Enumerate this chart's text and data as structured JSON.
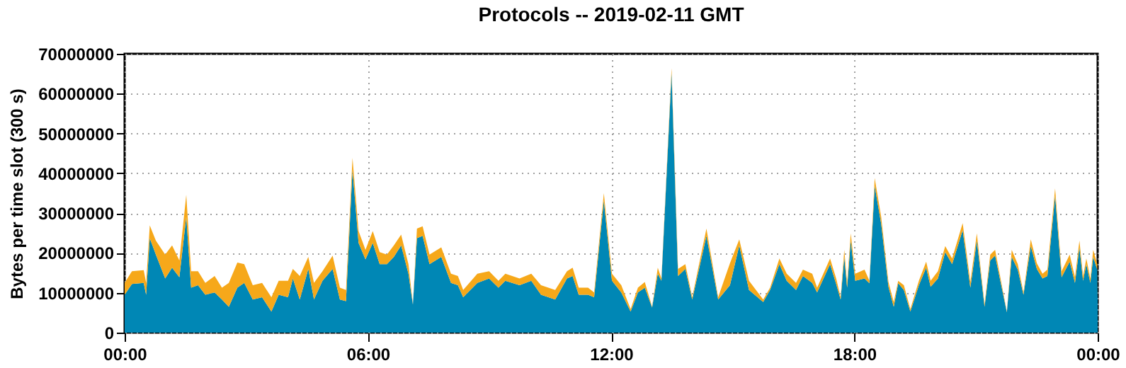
{
  "chart_data": {
    "type": "area",
    "title": "Protocols -- 2019-02-11 GMT",
    "ylabel": "Bytes per time slot (300 s)",
    "stacked": true,
    "grid": true,
    "xlim": [
      0,
      24
    ],
    "xticks": [
      {
        "value": 0,
        "label": "00:00"
      },
      {
        "value": 6,
        "label": "06:00"
      },
      {
        "value": 12,
        "label": "12:00"
      },
      {
        "value": 18,
        "label": "18:00"
      },
      {
        "value": 24,
        "label": "00:00"
      }
    ],
    "ylim": [
      0,
      70000000
    ],
    "yticks": [
      0,
      10000000,
      20000000,
      30000000,
      40000000,
      50000000,
      60000000,
      70000000
    ],
    "x": [
      0,
      0.18,
      0.47,
      0.53,
      0.62,
      0.77,
      1.0,
      1.17,
      1.35,
      1.52,
      1.64,
      1.81,
      1.99,
      2.22,
      2.4,
      2.57,
      2.78,
      2.95,
      3.16,
      3.39,
      3.62,
      3.8,
      4.03,
      4.15,
      4.32,
      4.53,
      4.67,
      4.88,
      5.13,
      5.31,
      5.46,
      5.62,
      5.77,
      5.94,
      6.12,
      6.29,
      6.47,
      6.64,
      6.82,
      7.0,
      7.11,
      7.21,
      7.35,
      7.52,
      7.81,
      8.05,
      8.22,
      8.35,
      8.7,
      8.99,
      9.22,
      9.39,
      9.74,
      10.03,
      10.27,
      10.62,
      10.91,
      11.05,
      11.2,
      11.43,
      11.58,
      11.82,
      12.02,
      12.25,
      12.48,
      12.66,
      12.83,
      13.01,
      13.15,
      13.24,
      13.49,
      13.65,
      13.83,
      14.0,
      14.35,
      14.64,
      14.93,
      15.16,
      15.4,
      15.75,
      15.92,
      16.15,
      16.33,
      16.56,
      16.73,
      16.96,
      17.08,
      17.4,
      17.55,
      17.66,
      17.75,
      17.82,
      17.91,
      18.02,
      18.25,
      18.37,
      18.5,
      18.66,
      18.84,
      18.97,
      19.08,
      19.22,
      19.38,
      19.59,
      19.77,
      19.88,
      20.06,
      20.24,
      20.41,
      20.67,
      20.86,
      21.02,
      21.21,
      21.35,
      21.47,
      21.76,
      21.88,
      22.03,
      22.17,
      22.35,
      22.5,
      22.64,
      22.76,
      22.95,
      23.11,
      23.31,
      23.44,
      23.55,
      23.64,
      23.72,
      23.82,
      23.89,
      23.99,
      24
    ],
    "series": [
      {
        "color": "#0087b5",
        "values": [
          9500000,
          12200000,
          12500000,
          9500000,
          23700000,
          19600000,
          13600000,
          16300000,
          13900000,
          29100000,
          11300000,
          11900000,
          9500000,
          10100000,
          8300000,
          6500000,
          11300000,
          12500000,
          8300000,
          8900000,
          5300000,
          9500000,
          8900000,
          13600000,
          8300000,
          16000000,
          8300000,
          13000000,
          16000000,
          8300000,
          7900000,
          40900000,
          22500000,
          18400000,
          22500000,
          17200000,
          17200000,
          19000000,
          21900000,
          14800000,
          7000000,
          23700000,
          24300000,
          17200000,
          19000000,
          12500000,
          11900000,
          8900000,
          12500000,
          13600000,
          11300000,
          13000000,
          11900000,
          13000000,
          9500000,
          8300000,
          13600000,
          14200000,
          9500000,
          9500000,
          8900000,
          33200000,
          13000000,
          10100000,
          5300000,
          10100000,
          11300000,
          6300000,
          14800000,
          13000000,
          65200000,
          14200000,
          16000000,
          8300000,
          24300000,
          8300000,
          11900000,
          21900000,
          10700000,
          7700000,
          10700000,
          17200000,
          13000000,
          10700000,
          14200000,
          12500000,
          10100000,
          17200000,
          12200000,
          8300000,
          19000000,
          11300000,
          23100000,
          13000000,
          13600000,
          12400000,
          36800000,
          27300000,
          11500000,
          6500000,
          12400000,
          10700000,
          5300000,
          11900000,
          16300000,
          11500000,
          13600000,
          20200000,
          17200000,
          25700000,
          11300000,
          23100000,
          6500000,
          18100000,
          19300000,
          5100000,
          19000000,
          15800000,
          9500000,
          21700000,
          16000000,
          13600000,
          14200000,
          34400000,
          13900000,
          17800000,
          12500000,
          21400000,
          13000000,
          17200000,
          12500000,
          19000000,
          15800000,
          8900000
        ]
      },
      {
        "color": "#f6a81a",
        "values": [
          3000000,
          3200000,
          3200000,
          3000000,
          3200000,
          3500000,
          6000000,
          5600000,
          4200000,
          5500000,
          4100000,
          3500000,
          3000000,
          4100000,
          3000000,
          6000000,
          6300000,
          4700000,
          3600000,
          3600000,
          3600000,
          3500000,
          4100000,
          2400000,
          5900000,
          3000000,
          4200000,
          2400000,
          3300000,
          3000000,
          2800000,
          3000000,
          3000000,
          2400000,
          3000000,
          3000000,
          2400000,
          2900000,
          2700000,
          2400000,
          100000,
          2400000,
          2400000,
          2400000,
          2400000,
          2300000,
          2300000,
          1800000,
          2300000,
          1800000,
          1700000,
          1800000,
          1700000,
          1800000,
          2400000,
          2400000,
          1800000,
          2100000,
          1800000,
          1800000,
          1200000,
          1800000,
          1800000,
          1800000,
          600000,
          1200000,
          1400000,
          200000,
          1500000,
          600000,
          1200000,
          1800000,
          1200000,
          600000,
          1800000,
          600000,
          5500000,
          1500000,
          2300000,
          600000,
          600000,
          1400000,
          1800000,
          1800000,
          1600000,
          2300000,
          1200000,
          1400000,
          1400000,
          600000,
          1800000,
          1200000,
          1800000,
          1800000,
          2200000,
          600000,
          2000000,
          1800000,
          1200000,
          1200000,
          600000,
          1200000,
          600000,
          1100000,
          1500000,
          1500000,
          1800000,
          1500000,
          1400000,
          1800000,
          1400000,
          1800000,
          600000,
          1500000,
          1500000,
          200000,
          1800000,
          1400000,
          600000,
          1700000,
          1400000,
          1200000,
          1600000,
          1800000,
          1500000,
          1800000,
          1400000,
          1700000,
          1200000,
          1400000,
          1100000,
          1800000,
          1400000,
          1200000
        ]
      }
    ]
  }
}
